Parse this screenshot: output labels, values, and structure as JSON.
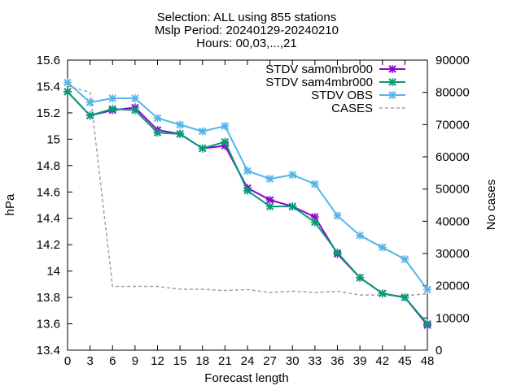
{
  "chart_data": {
    "type": "line",
    "title_lines": [
      "Selection: ALL using   855 stations",
      "Mslp   Period: 20240129-20240210",
      "Hours: 00,03,...,21"
    ],
    "xlabel": "Forecast length",
    "ylabel": "hPa",
    "y2label": "No cases",
    "x": [
      0,
      3,
      6,
      9,
      12,
      15,
      18,
      21,
      24,
      27,
      30,
      33,
      36,
      39,
      42,
      45,
      48
    ],
    "xlim": [
      0,
      48
    ],
    "ylim": [
      13.4,
      15.6
    ],
    "y2lim": [
      0,
      90000
    ],
    "x_ticks": [
      "0",
      "3",
      "6",
      "9",
      "12",
      "15",
      "18",
      "21",
      "24",
      "27",
      "30",
      "33",
      "36",
      "39",
      "42",
      "45",
      "48"
    ],
    "y_ticks": [
      "13.4",
      "13.6",
      "13.8",
      "14",
      "14.2",
      "14.4",
      "14.6",
      "14.8",
      "15",
      "15.2",
      "15.4",
      "15.6"
    ],
    "y2_ticks": [
      "0",
      "10000",
      "20000",
      "30000",
      "40000",
      "50000",
      "60000",
      "70000",
      "80000",
      "90000"
    ],
    "legend_position": "top-right",
    "grid": false,
    "series": [
      {
        "name": "STDV sam0mbr000",
        "axis": "y",
        "color": "#9400d3",
        "style": "solid",
        "marker": "x",
        "values": [
          15.36,
          15.18,
          15.22,
          15.24,
          15.07,
          15.04,
          14.93,
          14.95,
          14.63,
          14.54,
          14.49,
          14.41,
          14.13,
          13.95,
          13.83,
          13.8,
          13.59
        ]
      },
      {
        "name": "STDV sam4mbr000",
        "axis": "y",
        "color": "#009e73",
        "style": "solid",
        "marker": "x",
        "values": [
          15.36,
          15.18,
          15.23,
          15.22,
          15.05,
          15.04,
          14.93,
          14.98,
          14.61,
          14.49,
          14.49,
          14.37,
          14.14,
          13.95,
          13.83,
          13.8,
          13.6
        ]
      },
      {
        "name": "STDV OBS",
        "axis": "y",
        "color": "#56b4e9",
        "style": "solid",
        "marker": "x",
        "values": [
          15.43,
          15.28,
          15.31,
          15.31,
          15.16,
          15.11,
          15.06,
          15.1,
          14.76,
          14.7,
          14.73,
          14.66,
          14.42,
          14.27,
          14.18,
          14.09,
          13.86
        ]
      },
      {
        "name": "CASES",
        "axis": "y2",
        "color": "#a0a0a0",
        "style": "dashed",
        "marker": "none",
        "values": [
          82000,
          80000,
          19800,
          19800,
          19800,
          18900,
          18900,
          18500,
          18800,
          17900,
          18300,
          17900,
          18300,
          17100,
          17100,
          16900,
          17500
        ]
      }
    ]
  }
}
